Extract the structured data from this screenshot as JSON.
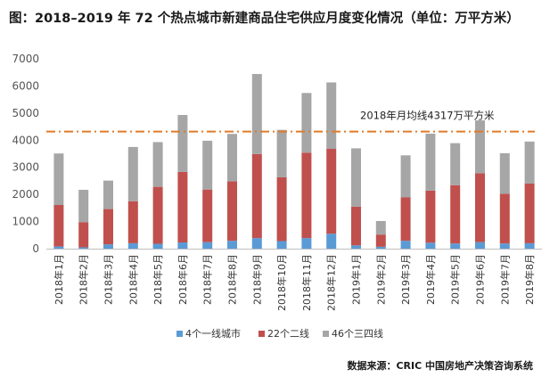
{
  "title": "图：2018–2019 年 72 个热点城市新建商品住宅供应月度变化情况（单位：万平方米）",
  "source": "数据来源：CRIC 中国房地产决策咨询系统",
  "colors": {
    "tier1": "#5b9bd5",
    "tier2": "#c0504d",
    "tier34": "#a6a6a6",
    "reference_line": "#e07b2a"
  },
  "chart_data": {
    "type": "bar",
    "stacked": true,
    "categories": [
      "2018年1月",
      "2018年2月",
      "2018年3月",
      "2018年4月",
      "2018年5月",
      "2018年6月",
      "2018年7月",
      "2018年8月",
      "2018年9月",
      "2018年10月",
      "2018年11月",
      "2018年12月",
      "2019年1月",
      "2019年2月",
      "2019年3月",
      "2019年4月",
      "2019年5月",
      "2019年6月",
      "2019年7月",
      "2019年8月"
    ],
    "series": [
      {
        "name": "4个一线城市",
        "color": "#5b9bd5",
        "values": [
          80,
          50,
          160,
          200,
          180,
          230,
          240,
          290,
          390,
          280,
          390,
          550,
          120,
          70,
          290,
          220,
          190,
          240,
          190,
          200
        ]
      },
      {
        "name": "22个二线",
        "color": "#c0504d",
        "values": [
          1530,
          920,
          1300,
          1550,
          2100,
          2600,
          1940,
          2190,
          3100,
          2350,
          3150,
          3130,
          1430,
          450,
          1600,
          1920,
          2150,
          2540,
          1830,
          2200
        ]
      },
      {
        "name": "46个三四线",
        "color": "#a6a6a6",
        "values": [
          1900,
          1200,
          1050,
          2000,
          1650,
          2100,
          1800,
          1750,
          2950,
          1750,
          2200,
          2450,
          2150,
          500,
          1550,
          2100,
          1550,
          1950,
          1500,
          1550
        ]
      }
    ],
    "reference_line": {
      "value": 4317,
      "label": "2018年月均线4317万平方米"
    },
    "yticks": [
      0,
      1000,
      2000,
      3000,
      4000,
      5000,
      6000,
      7000
    ],
    "ylim": [
      0,
      7000
    ],
    "legend_position": "bottom",
    "grid": false
  }
}
